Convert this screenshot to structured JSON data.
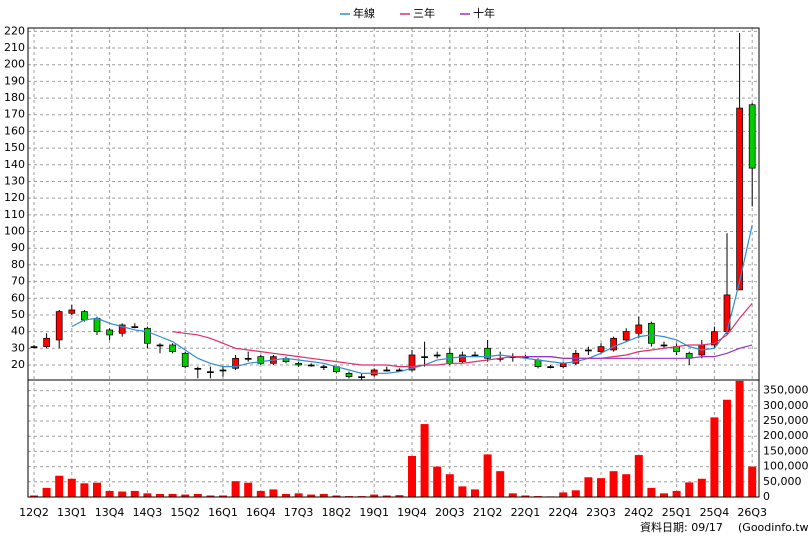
{
  "chart_data": [
    {
      "type": "candlestick",
      "categories": [
        "12Q2",
        null,
        null,
        "13Q1",
        null,
        null,
        "13Q4",
        null,
        null,
        "14Q3",
        null,
        null,
        "15Q2",
        null,
        null,
        "16Q1",
        null,
        null,
        "16Q4",
        null,
        null,
        "17Q3",
        null,
        null,
        "18Q2",
        null,
        null,
        "19Q1",
        null,
        null,
        "19Q4",
        null,
        null,
        "20Q3",
        null,
        null,
        "21Q2",
        null,
        null,
        "22Q1",
        null,
        null,
        "22Q4",
        null,
        null,
        "23Q3",
        null,
        null,
        "24Q2",
        null,
        null,
        "25Q1",
        null,
        null,
        "25Q4",
        null,
        null,
        "26Q3"
      ],
      "open": [
        31,
        31,
        35,
        51,
        52,
        48,
        41,
        39,
        43,
        42,
        32,
        32,
        27,
        18,
        16,
        17,
        18,
        24,
        25,
        21,
        24,
        21,
        20,
        19,
        19,
        15,
        13,
        14,
        17,
        17,
        17,
        25,
        26,
        27,
        22,
        26,
        30,
        24,
        25,
        25,
        23,
        19,
        19,
        21,
        29,
        28,
        29,
        35,
        39,
        45,
        32,
        31,
        27,
        26,
        32,
        40,
        65,
        176
      ],
      "high": [
        32,
        39,
        53,
        56,
        53,
        49,
        42,
        45,
        45,
        43,
        33,
        33,
        28,
        19,
        19,
        19,
        26,
        28,
        26,
        26,
        25,
        22,
        21,
        20,
        19,
        16,
        15,
        18,
        19,
        18,
        29,
        34,
        28,
        30,
        28,
        28,
        35,
        28,
        27,
        26,
        24,
        20,
        22,
        29,
        31,
        33,
        37,
        42,
        49,
        46,
        34,
        33,
        28,
        35,
        43,
        99,
        219,
        177
      ],
      "low": [
        30,
        30,
        30,
        50,
        46,
        38,
        35,
        37,
        42,
        30,
        27,
        27,
        18,
        12,
        12,
        13,
        17,
        22,
        20,
        20,
        21,
        19,
        19,
        17,
        15,
        12,
        11,
        13,
        16,
        16,
        16,
        19,
        24,
        20,
        21,
        25,
        22,
        22,
        22,
        24,
        18,
        18,
        18,
        20,
        26,
        27,
        28,
        34,
        36,
        31,
        30,
        26,
        20,
        24,
        30,
        38,
        65,
        115
      ],
      "close": [
        31,
        36,
        52,
        53,
        47,
        40,
        38,
        44,
        43,
        33,
        32,
        28,
        19,
        18,
        16,
        17,
        24,
        24,
        21,
        25,
        22,
        20,
        20,
        19,
        16,
        13,
        13,
        17,
        17,
        17,
        26,
        25,
        26,
        21,
        26,
        26,
        24,
        24,
        25,
        25,
        19,
        19,
        21,
        27,
        29,
        31,
        36,
        40,
        44,
        33,
        32,
        28,
        24,
        32,
        40,
        62,
        174,
        138
      ],
      "up_color": "#ff0000",
      "down_color": "#00cc00",
      "series": [
        {
          "name": "年線",
          "color": "#2f8fd0",
          "values": [
            null,
            null,
            null,
            43,
            47,
            48,
            45,
            43,
            41,
            40,
            37,
            34,
            29,
            24,
            21,
            19,
            19,
            21,
            22,
            23,
            24,
            23,
            22,
            21,
            19,
            17,
            15,
            15,
            15,
            16,
            18,
            20,
            23,
            24,
            25,
            25,
            25,
            26,
            25,
            24,
            23,
            22,
            21,
            22,
            24,
            27,
            31,
            34,
            37,
            38,
            37,
            35,
            31,
            29,
            30,
            40,
            70,
            104
          ]
        },
        {
          "name": "三年",
          "color": "#e0306a",
          "values": [
            null,
            null,
            null,
            null,
            null,
            null,
            null,
            null,
            null,
            null,
            null,
            40,
            39,
            38,
            36,
            33,
            30,
            29,
            28,
            27,
            26,
            25,
            24,
            23,
            22,
            21,
            20,
            20,
            20,
            19,
            19,
            20,
            20,
            21,
            21,
            22,
            23,
            24,
            25,
            25,
            25,
            25,
            24,
            24,
            24,
            24,
            25,
            26,
            28,
            29,
            30,
            31,
            32,
            32,
            33,
            38,
            48,
            57
          ]
        },
        {
          "name": "十年",
          "color": "#9933cc",
          "values": [
            null,
            null,
            null,
            null,
            null,
            null,
            null,
            null,
            null,
            null,
            null,
            null,
            null,
            null,
            null,
            null,
            null,
            null,
            null,
            null,
            null,
            null,
            null,
            null,
            null,
            null,
            null,
            null,
            null,
            null,
            null,
            null,
            null,
            null,
            null,
            null,
            null,
            null,
            null,
            25,
            25,
            25,
            24,
            24,
            24,
            24,
            24,
            24,
            24,
            24,
            24,
            24,
            24,
            25,
            25,
            27,
            30,
            32
          ]
        }
      ],
      "ylim": [
        11,
        222
      ],
      "yticks": [
        20,
        30,
        40,
        50,
        60,
        70,
        80,
        90,
        100,
        110,
        120,
        130,
        140,
        150,
        160,
        170,
        180,
        190,
        200,
        210,
        220
      ],
      "grid": true
    },
    {
      "type": "bar",
      "values": [
        5000,
        30000,
        70000,
        60000,
        45000,
        47000,
        20000,
        18000,
        20000,
        12000,
        10000,
        10000,
        8000,
        10000,
        5000,
        5000,
        52000,
        47000,
        20000,
        25000,
        10000,
        12000,
        8000,
        10000,
        5000,
        3000,
        3000,
        8000,
        5000,
        6000,
        135000,
        240000,
        100000,
        75000,
        35000,
        25000,
        140000,
        85000,
        12000,
        5000,
        3000,
        2000,
        15000,
        22000,
        65000,
        62000,
        85000,
        75000,
        138000,
        30000,
        12000,
        20000,
        48000,
        60000,
        262000,
        320000,
        382000,
        100000
      ],
      "color": "#ff0000",
      "ylim": [
        0,
        385000
      ],
      "yticks": [
        0,
        {
          "value": 50000,
          "label": "50,000"
        },
        {
          "value": 100000,
          "label": "100,000"
        },
        {
          "value": 150000,
          "label": "150,000"
        },
        {
          "value": 200000,
          "label": "200,000"
        },
        {
          "value": 250000,
          "label": "250,000"
        },
        {
          "value": 300000,
          "label": "300,000"
        },
        {
          "value": 350000,
          "label": "350,000"
        }
      ],
      "grid": true
    }
  ],
  "footer": {
    "date": "資料日期: 09/17",
    "source": "(Goodinfo.tw)"
  }
}
